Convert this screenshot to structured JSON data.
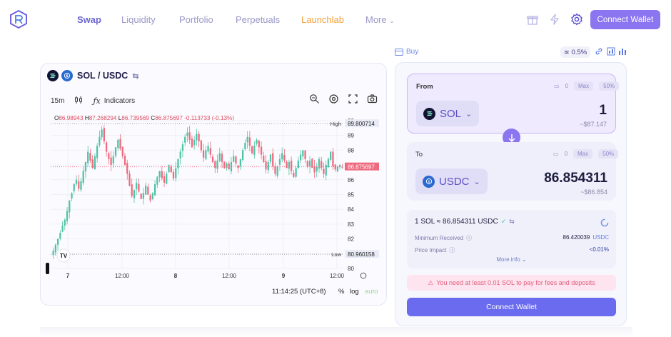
{
  "header": {
    "logo_icon": "raydium-logo-icon",
    "nav": [
      {
        "label": "Swap",
        "active": true
      },
      {
        "label": "Liquidity"
      },
      {
        "label": "Portfolio"
      },
      {
        "label": "Perpetuals"
      },
      {
        "label": "Launchlab"
      },
      {
        "label": "More"
      }
    ],
    "icons": [
      "gift-icon",
      "lightning-icon",
      "gear-icon"
    ],
    "connect_label": "Connect Wallet"
  },
  "chart": {
    "pair": "SOL / USDC",
    "interval": "15m",
    "indicators_label": "Indicators",
    "ohlc": {
      "o_label": "O",
      "o": "86.98943",
      "h_label": "H",
      "h": "87.268294",
      "l_label": "L",
      "l": "86.739569",
      "c_label": "C",
      "c": "86.875697",
      "change": "-0.113733 (-0.13%)"
    },
    "high_label": "High",
    "high_value": "89.800714",
    "low_label": "Low",
    "low_value": "80.960158",
    "last_price": "86.875697",
    "y_ticks": [
      "90",
      "89",
      "88",
      "87",
      "86",
      "85",
      "84",
      "83",
      "82",
      "81",
      "80"
    ],
    "x_ticks": [
      "7",
      "12:00",
      "8",
      "12:00",
      "9",
      "12:00"
    ],
    "time_readout": "11:14:25 (UTC+8)",
    "percent_label": "%",
    "log_label": "log",
    "auto_label": "auto",
    "colors": {
      "up": "#4fc3a6",
      "down": "#ef6a7e",
      "grid": "#eef0f6"
    }
  },
  "chart_data": {
    "type": "candlestick",
    "title": "SOL / USDC",
    "x_ticks": [
      "7",
      "12:00",
      "8",
      "12:00",
      "9",
      "12:00"
    ],
    "ylim": [
      80,
      90
    ],
    "high": 89.800714,
    "low": 80.960158,
    "last": 86.875697,
    "close_path": [
      81.2,
      81.6,
      82.0,
      82.4,
      82.9,
      83.3,
      83.9,
      84.6,
      85.1,
      85.7,
      86.0,
      85.4,
      85.9,
      86.6,
      87.2,
      87.9,
      87.3,
      86.8,
      87.6,
      88.3,
      88.9,
      89.4,
      88.6,
      87.9,
      87.4,
      87.0,
      87.6,
      88.2,
      88.7,
      88.1,
      87.6,
      87.0,
      86.4,
      85.6,
      84.9,
      85.3,
      85.8,
      85.2,
      84.7,
      85.1,
      85.6,
      85.0,
      84.6,
      85.1,
      85.7,
      86.2,
      86.6,
      86.1,
      85.8,
      86.4,
      87.0,
      86.5,
      86.1,
      86.8,
      87.4,
      87.9,
      88.4,
      88.9,
      89.2,
      88.7,
      88.2,
      88.7,
      89.1,
      88.6,
      88.0,
      87.5,
      88.0,
      88.3,
      87.7,
      87.2,
      86.8,
      87.3,
      87.8,
      87.2,
      86.8,
      87.1,
      86.7,
      87.2,
      87.6,
      87.1,
      86.8,
      87.4,
      88.0,
      88.5,
      88.9,
      88.3,
      87.8,
      88.3,
      88.7,
      88.2,
      87.7,
      87.2,
      86.7,
      87.2,
      87.7,
      86.9,
      86.4,
      86.9,
      87.4,
      87.8,
      87.3,
      86.8,
      87.2,
      86.6,
      86.2,
      86.8,
      87.3,
      87.7,
      88.0,
      87.4,
      86.9,
      87.3,
      86.8,
      86.5,
      86.9,
      87.4,
      86.8,
      86.4,
      87.0,
      87.4,
      87.9,
      86.9,
      86.7,
      86.9,
      87.0,
      86.88
    ]
  },
  "swap": {
    "buy_label": "Buy",
    "slippage": "0.5%",
    "from_label": "From",
    "to_label": "To",
    "balance": "0",
    "max_label": "Max",
    "half_label": "50%",
    "from_token": "SOL",
    "from_amount": "1",
    "from_usd": "~$87.147",
    "to_token": "USDC",
    "to_amount": "86.854311",
    "to_usd": "~$86.854",
    "rate": "1 SOL ≈ 86.854311 USDC",
    "min_received_label": "Minimum Received",
    "min_received_value": "86.420039",
    "min_received_unit": "USDC",
    "price_impact_label": "Price Impact",
    "price_impact_value": "<0.01%",
    "more_info": "More info",
    "warning": "You need at least 0.01 SOL to pay for fees and deposits",
    "connect_label": "Connect Wallet"
  }
}
